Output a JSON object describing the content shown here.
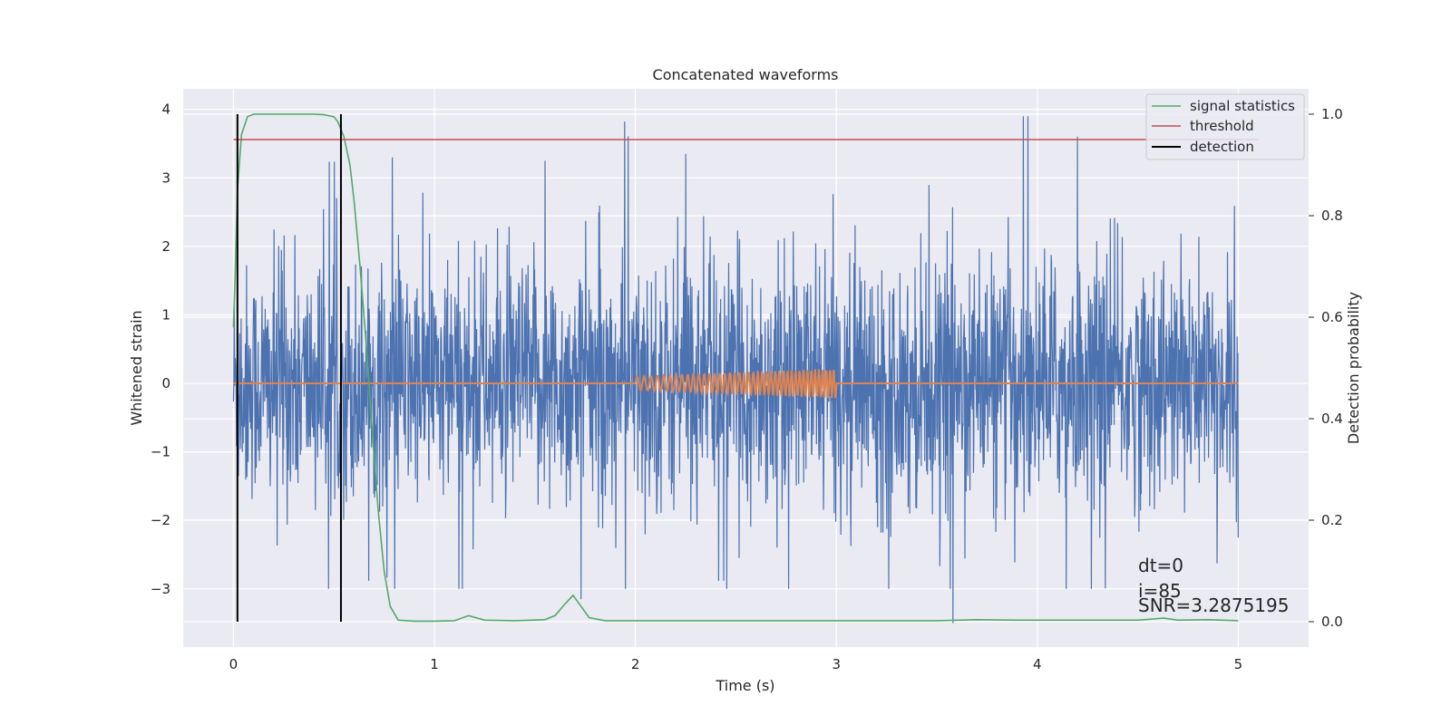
{
  "chart_data": {
    "type": "line",
    "title": "Concatenated waveforms",
    "xlabel": "Time (s)",
    "ylabel": "Whitened strain",
    "ylabel_right": "Detection probability",
    "xlim": [
      -0.25,
      5.35
    ],
    "ylim": [
      -3.85,
      4.3
    ],
    "ylim_right": [
      -0.05,
      1.05
    ],
    "x_ticks": [
      0,
      1,
      2,
      3,
      4,
      5
    ],
    "y_ticks": [
      -3,
      -2,
      -1,
      0,
      1,
      2,
      3,
      4
    ],
    "y_right_ticks": [
      0.0,
      0.2,
      0.4,
      0.6,
      0.8,
      1.0
    ],
    "x_tick_labels": [
      "0",
      "1",
      "2",
      "3",
      "4",
      "5"
    ],
    "y_tick_labels": [
      "−3",
      "−2",
      "−1",
      "0",
      "1",
      "2",
      "3",
      "4"
    ],
    "y_right_tick_labels": [
      "0.0",
      "0.2",
      "0.4",
      "0.6",
      "0.8",
      "1.0"
    ],
    "grid": true,
    "legend_position": "top-right",
    "legend": [
      {
        "label": "signal statistics",
        "color": "#55a868"
      },
      {
        "label": "threshold",
        "color": "#c44e52"
      },
      {
        "label": "detection",
        "color": "#000000"
      }
    ],
    "series": [
      {
        "name": "",
        "kind": "whitened strain noise",
        "axis": "left",
        "color": "#4c72b0",
        "x_range": [
          0,
          5
        ],
        "approx_envelope": [
          -3.0,
          3.9
        ],
        "notable_peaks": [
          {
            "x": 3.93,
            "y": 3.9
          },
          {
            "x": 4.2,
            "y": 3.6
          },
          {
            "x": 1.55,
            "y": 3.25
          },
          {
            "x": 2.25,
            "y": 3.35
          },
          {
            "x": 3.58,
            "y": -3.5
          },
          {
            "x": 1.73,
            "y": -3.15
          }
        ]
      },
      {
        "name": "",
        "kind": "injected waveform",
        "axis": "left",
        "color": "#dd8452",
        "x_range": [
          0,
          5
        ],
        "chirp_start": 2.0,
        "chirp_end": 3.0,
        "amplitude_start": 0.1,
        "amplitude_end": 0.22
      },
      {
        "name": "signal statistics",
        "axis": "right",
        "color": "#55a868",
        "x": [
          0.0,
          0.01,
          0.02,
          0.04,
          0.07,
          0.1,
          0.2,
          0.3,
          0.4,
          0.45,
          0.5,
          0.52,
          0.55,
          0.58,
          0.6,
          0.63,
          0.66,
          0.69,
          0.72,
          0.75,
          0.78,
          0.82,
          0.9,
          1.0,
          1.1,
          1.17,
          1.25,
          1.4,
          1.55,
          1.6,
          1.65,
          1.69,
          1.73,
          1.77,
          1.85,
          2.0,
          2.5,
          3.0,
          3.5,
          3.7,
          3.9,
          4.2,
          4.5,
          4.63,
          4.7,
          4.85,
          5.0
        ],
        "y": [
          0.58,
          0.7,
          0.85,
          0.96,
          0.995,
          1.0,
          1.0,
          1.0,
          1.0,
          0.999,
          0.995,
          0.985,
          0.955,
          0.9,
          0.83,
          0.7,
          0.55,
          0.38,
          0.22,
          0.1,
          0.03,
          0.003,
          0.001,
          0.001,
          0.002,
          0.012,
          0.003,
          0.002,
          0.004,
          0.012,
          0.035,
          0.052,
          0.03,
          0.008,
          0.002,
          0.002,
          0.002,
          0.002,
          0.002,
          0.004,
          0.003,
          0.003,
          0.003,
          0.007,
          0.003,
          0.004,
          0.002
        ]
      },
      {
        "name": "threshold",
        "axis": "right",
        "color": "#c44e52",
        "x": [
          0,
          5.1
        ],
        "y": [
          0.95,
          0.95
        ]
      },
      {
        "name": "detection",
        "axis": "right",
        "color": "#000000",
        "type": "vlines",
        "x": [
          0.02,
          0.535
        ],
        "y_range": [
          0.0,
          1.0
        ]
      }
    ],
    "annotations": [
      "dt=0",
      "i=85",
      "SNR=3.2875195"
    ]
  }
}
